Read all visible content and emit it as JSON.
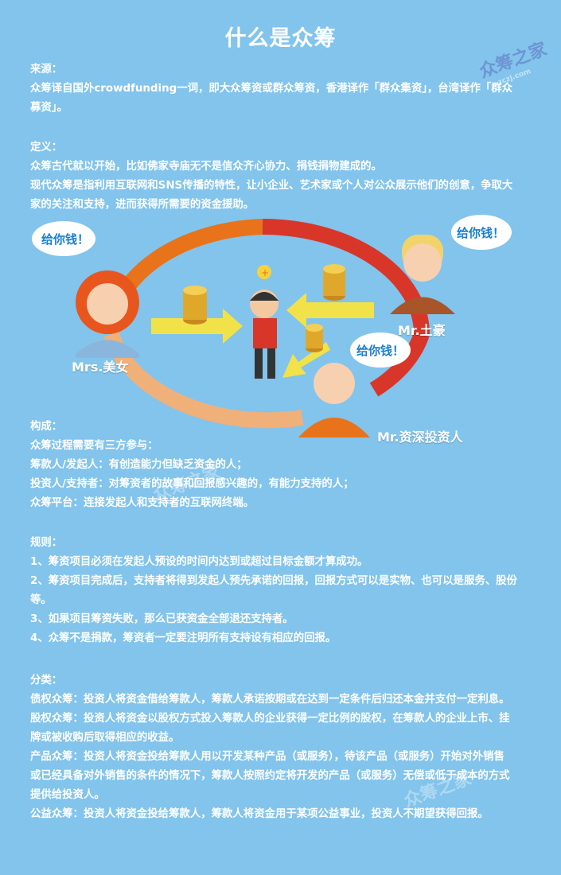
{
  "title": "什么是众筹",
  "source": {
    "heading": "来源：",
    "lines": [
      "众筹译自国外crowdfunding一词，即大众筹资或群众筹资，香港译作「群众集资」，台湾译作「群众",
      "募资」。"
    ]
  },
  "definition": {
    "heading": "定义：",
    "lines": [
      "众筹古代就以开始，比如佛家寺庙无不是信众齐心协力、捐钱捐物建成的。",
      "现代众筹是指利用互联网和SNS传播的特性，让小企业、艺术家或个人对公众展示他们的创意，争取大",
      "家的关注和支持，进而获得所需要的资金援助。"
    ]
  },
  "illustration": {
    "bubble_left": "给你钱！",
    "bubble_right": "给你钱！",
    "bubble_bottom": "给你钱！",
    "label_mrs": "Mrs.美女",
    "label_tuhao": "Mr.土豪",
    "label_investor": "Mr.资深投资人",
    "colors": {
      "ring_orange": "#e8731a",
      "ring_red": "#d9362a",
      "ring_light": "#f0b07a",
      "arrow_yellow": "#f2e24a"
    }
  },
  "composition": {
    "heading": "构成：",
    "lines": [
      "众筹过程需要有三方参与：",
      "筹款人/发起人：有创造能力但缺乏资金的人；",
      "投资人/支持者：对筹资者的故事和回报感兴趣的，有能力支持的人；",
      "众筹平台：连接发起人和支持者的互联网终端。"
    ]
  },
  "rules": {
    "heading": "规则：",
    "lines": [
      "1、筹资项目必须在发起人预设的时间内达到或超过目标金额才算成功。",
      "2、筹资项目完成后，支持者将得到发起人预先承诺的回报，回报方式可以是实物、也可以是服务、股份",
      "等。",
      "3、如果项目筹资失败，那么已获资金全部退还支持者。",
      "4、众筹不是捐款，筹资者一定要注明所有支持设有相应的回报。"
    ]
  },
  "classification": {
    "heading": "分类：",
    "lines": [
      "债权众筹：投资人将资金借给筹款人，筹款人承诺按期或在达到一定条件后归还本金并支付一定利息。",
      "股权众筹：投资人将资金以股权方式投入筹款人的企业获得一定比例的股权，在筹款人的企业上市、挂",
      "牌或被收购后取得相应的收益。",
      "产品众筹：投资人将资金投给筹款人用以开发某种产品（或服务），待该产品（或服务）开始对外销售",
      "或已经具备对外销售的条件的情况下，筹款人按照约定将开发的产品（或服务）无偿或低于成本的方式",
      "提供给投资人。",
      "公益众筹：投资人将资金投给筹款人，筹款人将资金用于某项公益事业，投资人不期望获得回报。"
    ]
  },
  "watermark": {
    "logo_text": "众筹之家",
    "url": "zczj.com"
  }
}
